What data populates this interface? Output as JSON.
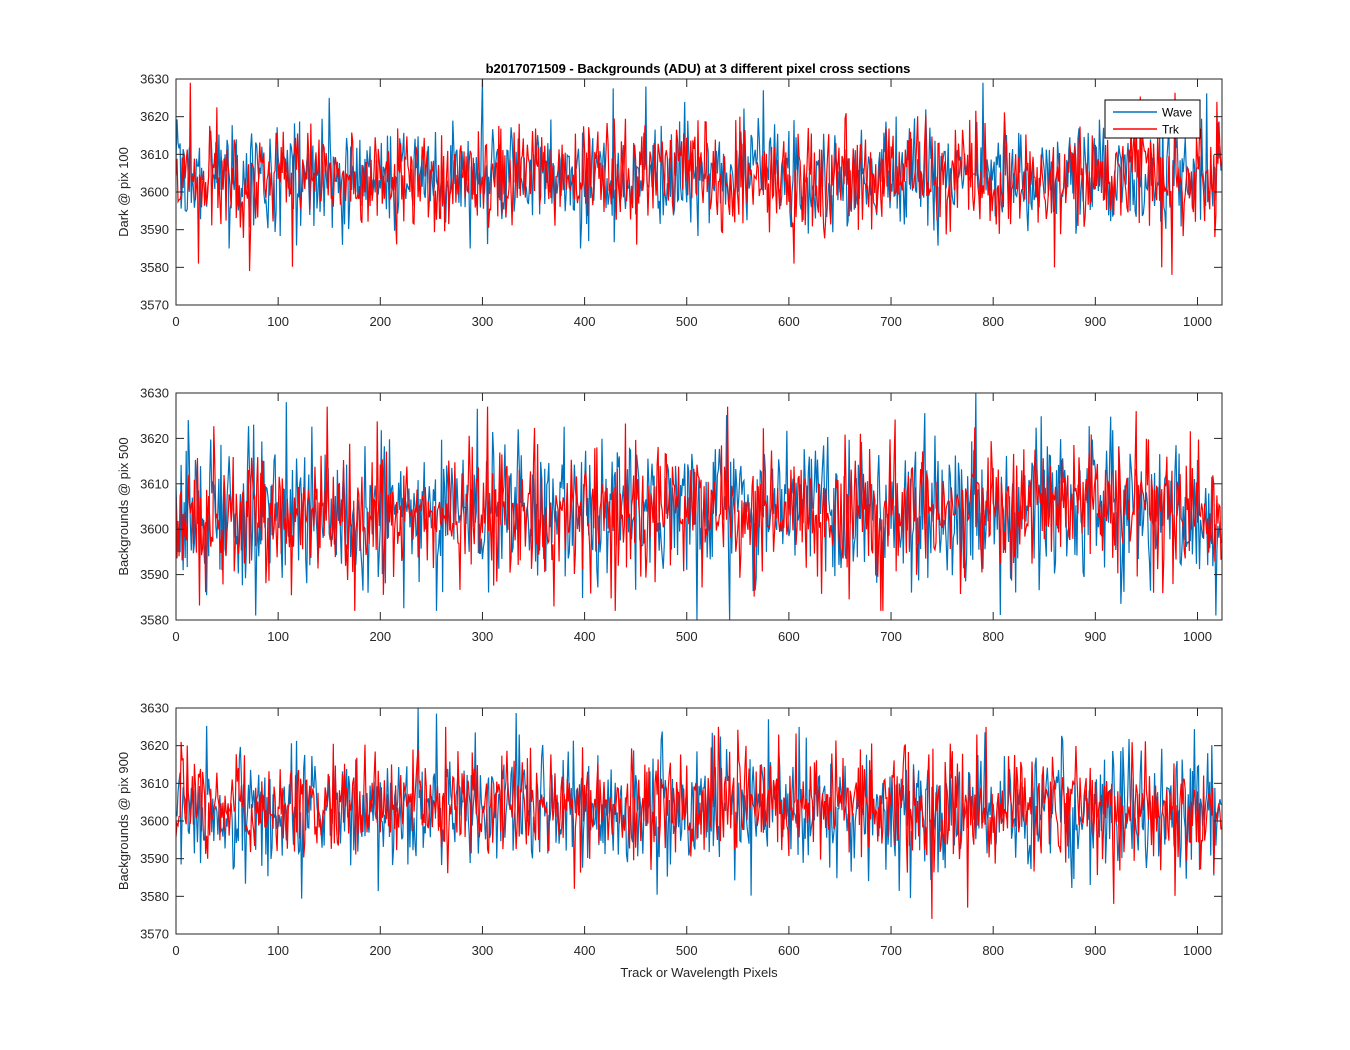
{
  "figure_title": "b2017071509 - Backgrounds (ADU) at 3 different pixel cross sections",
  "colors": {
    "wave": "#0072BD",
    "trk": "#FF0000",
    "axis": "#262626"
  },
  "chart_data": [
    {
      "type": "line",
      "title": "b2017071509 - Backgrounds (ADU) at 3 different pixel cross sections",
      "xlabel": "",
      "ylabel": "Dark @ pix 100",
      "xlim": [
        0,
        1024
      ],
      "ylim": [
        3570,
        3630
      ],
      "xticks": [
        0,
        100,
        200,
        300,
        400,
        500,
        600,
        700,
        800,
        900,
        1000
      ],
      "yticks": [
        3570,
        3580,
        3590,
        3600,
        3610,
        3620,
        3630
      ],
      "legend": {
        "placement": "top-right",
        "entries": [
          "Wave",
          "Trk"
        ]
      },
      "series": [
        {
          "name": "Wave",
          "color": "#0072BD",
          "mean": 3604,
          "std": 7,
          "points": 1024,
          "min": 3585,
          "max": 3630,
          "notable": [
            [
              150,
              3625
            ],
            [
              300,
              3630
            ],
            [
              460,
              3628
            ],
            [
              575,
              3627
            ],
            [
              790,
              3629
            ]
          ]
        },
        {
          "name": "Trk",
          "color": "#FF0000",
          "mean": 3604,
          "std": 7,
          "points": 1024,
          "min": 3578,
          "max": 3629,
          "notable": [
            [
              14,
              3629
            ],
            [
              22,
              3581
            ],
            [
              72,
              3579
            ],
            [
              605,
              3581
            ],
            [
              860,
              3580
            ],
            [
              965,
              3580
            ],
            [
              975,
              3578
            ]
          ]
        }
      ]
    },
    {
      "type": "line",
      "title": "",
      "xlabel": "",
      "ylabel": "Backgrounds @ pix 500",
      "xlim": [
        0,
        1024
      ],
      "ylim": [
        3580,
        3630
      ],
      "xticks": [
        0,
        100,
        200,
        300,
        400,
        500,
        600,
        700,
        800,
        900,
        1000
      ],
      "yticks": [
        3580,
        3590,
        3600,
        3610,
        3620,
        3630
      ],
      "series": [
        {
          "name": "Wave",
          "color": "#0072BD",
          "mean": 3604,
          "std": 8,
          "points": 1024,
          "min": 3580,
          "max": 3630,
          "notable": [
            [
              78,
              3581
            ],
            [
              108,
              3628
            ],
            [
              255,
              3582
            ],
            [
              510,
              3580
            ],
            [
              783,
              3630
            ],
            [
              1018,
              3581
            ]
          ]
        },
        {
          "name": "Trk",
          "color": "#FF0000",
          "mean": 3604,
          "std": 7,
          "points": 1024,
          "min": 3582,
          "max": 3627,
          "notable": [
            [
              175,
              3582
            ],
            [
              370,
              3583
            ],
            [
              430,
              3582
            ],
            [
              540,
              3627
            ],
            [
              690,
              3582
            ],
            [
              940,
              3626
            ]
          ]
        }
      ]
    },
    {
      "type": "line",
      "title": "",
      "xlabel": "Track or Wavelength Pixels",
      "ylabel": "Backgrounds @ pix 900",
      "xlim": [
        0,
        1024
      ],
      "ylim": [
        3570,
        3630
      ],
      "xticks": [
        0,
        100,
        200,
        300,
        400,
        500,
        600,
        700,
        800,
        900,
        1000
      ],
      "yticks": [
        3570,
        3580,
        3590,
        3600,
        3610,
        3620,
        3630
      ],
      "series": [
        {
          "name": "Wave",
          "color": "#0072BD",
          "mean": 3603,
          "std": 8,
          "points": 1024,
          "min": 3579,
          "max": 3630,
          "notable": [
            [
              237,
              3630
            ],
            [
              580,
              3627
            ],
            [
              610,
              3625
            ],
            [
              895,
              3583
            ]
          ]
        },
        {
          "name": "Trk",
          "color": "#FF0000",
          "mean": 3604,
          "std": 7,
          "points": 1024,
          "min": 3574,
          "max": 3625,
          "notable": [
            [
              5,
              3621
            ],
            [
              390,
              3582
            ],
            [
              740,
              3574
            ],
            [
              775,
              3577
            ],
            [
              793,
              3625
            ],
            [
              918,
              3578
            ]
          ]
        }
      ]
    }
  ]
}
